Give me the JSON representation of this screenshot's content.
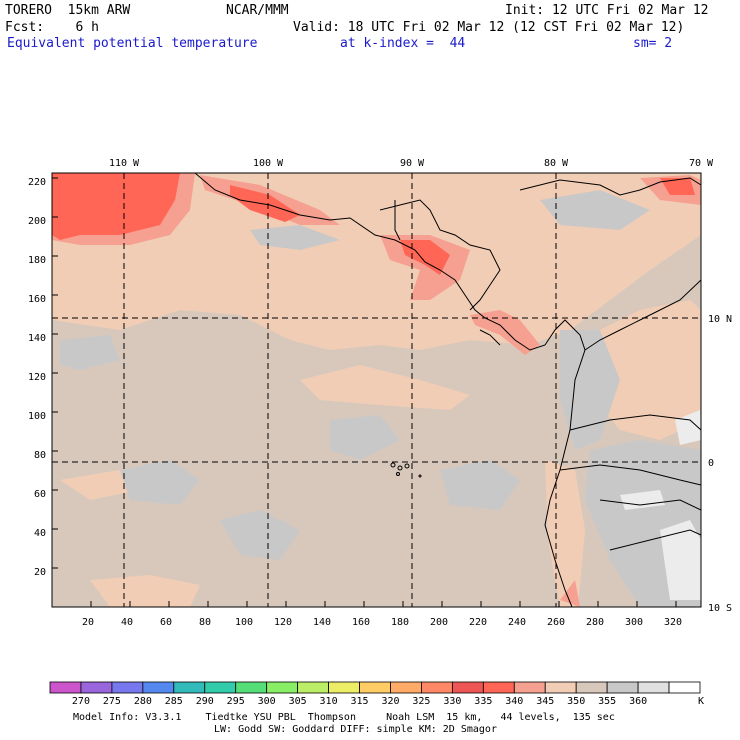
{
  "header": {
    "model": "TORERO  15km ARW",
    "org": "NCAR/MMM",
    "init": "Init: 12 UTC Fri 02 Mar 12",
    "fcst": "Fcst:    6 h",
    "valid": "Valid: 18 UTC Fri 02 Mar 12 (12 CST Fri 02 Mar 12)",
    "field": "Equivalent potential temperature",
    "level": "at k-index =  44",
    "smooth": "sm= 2"
  },
  "map": {
    "lon_labels": [
      "110 W",
      "100 W",
      "90 W",
      "80 W",
      "70 W"
    ],
    "lat_labels": [
      "10 N",
      "0",
      "10 S"
    ],
    "x_ticks": [
      "20",
      "40",
      "60",
      "80",
      "100",
      "120",
      "140",
      "160",
      "180",
      "200",
      "220",
      "240",
      "260",
      "280",
      "300",
      "320"
    ],
    "y_ticks": [
      "220",
      "200",
      "180",
      "160",
      "140",
      "120",
      "100",
      "80",
      "60",
      "40",
      "20"
    ]
  },
  "colorbar": {
    "labels": [
      "270",
      "275",
      "280",
      "285",
      "290",
      "295",
      "300",
      "305",
      "310",
      "315",
      "320",
      "325",
      "330",
      "335",
      "340",
      "345",
      "350",
      "355",
      "360"
    ],
    "unit": "K",
    "colors": [
      "#cc55cc",
      "#9966dd",
      "#7777ee",
      "#5588ee",
      "#33bbbb",
      "#33ccaa",
      "#55dd77",
      "#88ee66",
      "#bbee66",
      "#eeee66",
      "#ffcc66",
      "#ffaa66",
      "#ff8866",
      "#ee5555",
      "#ff6655",
      "#f5a090",
      "#f2cdb5",
      "#d8c8bc",
      "#c8c8c8",
      "#e0e0e0",
      "#ffffff"
    ]
  },
  "footer": {
    "line1": "Model Info: V3.3.1    Tiedtke YSU PBL  Thompson     Noah LSM  15 km,   44 levels,  135 sec",
    "line2": "LW: Godd SW: Goddard DIFF: simple KM: 2D Smagor"
  }
}
